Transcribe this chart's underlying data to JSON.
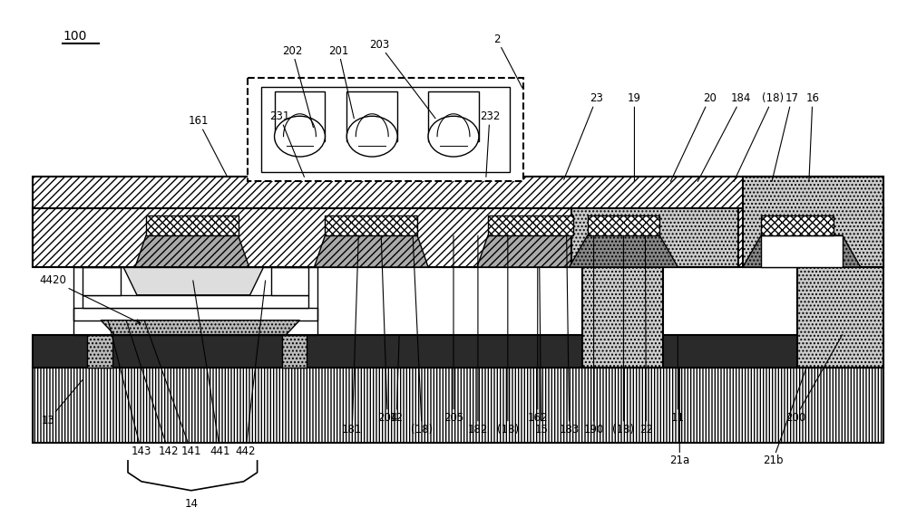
{
  "bg_color": "#ffffff",
  "line_color": "#000000",
  "fig_width": 10.0,
  "fig_height": 5.71,
  "dpi": 100
}
